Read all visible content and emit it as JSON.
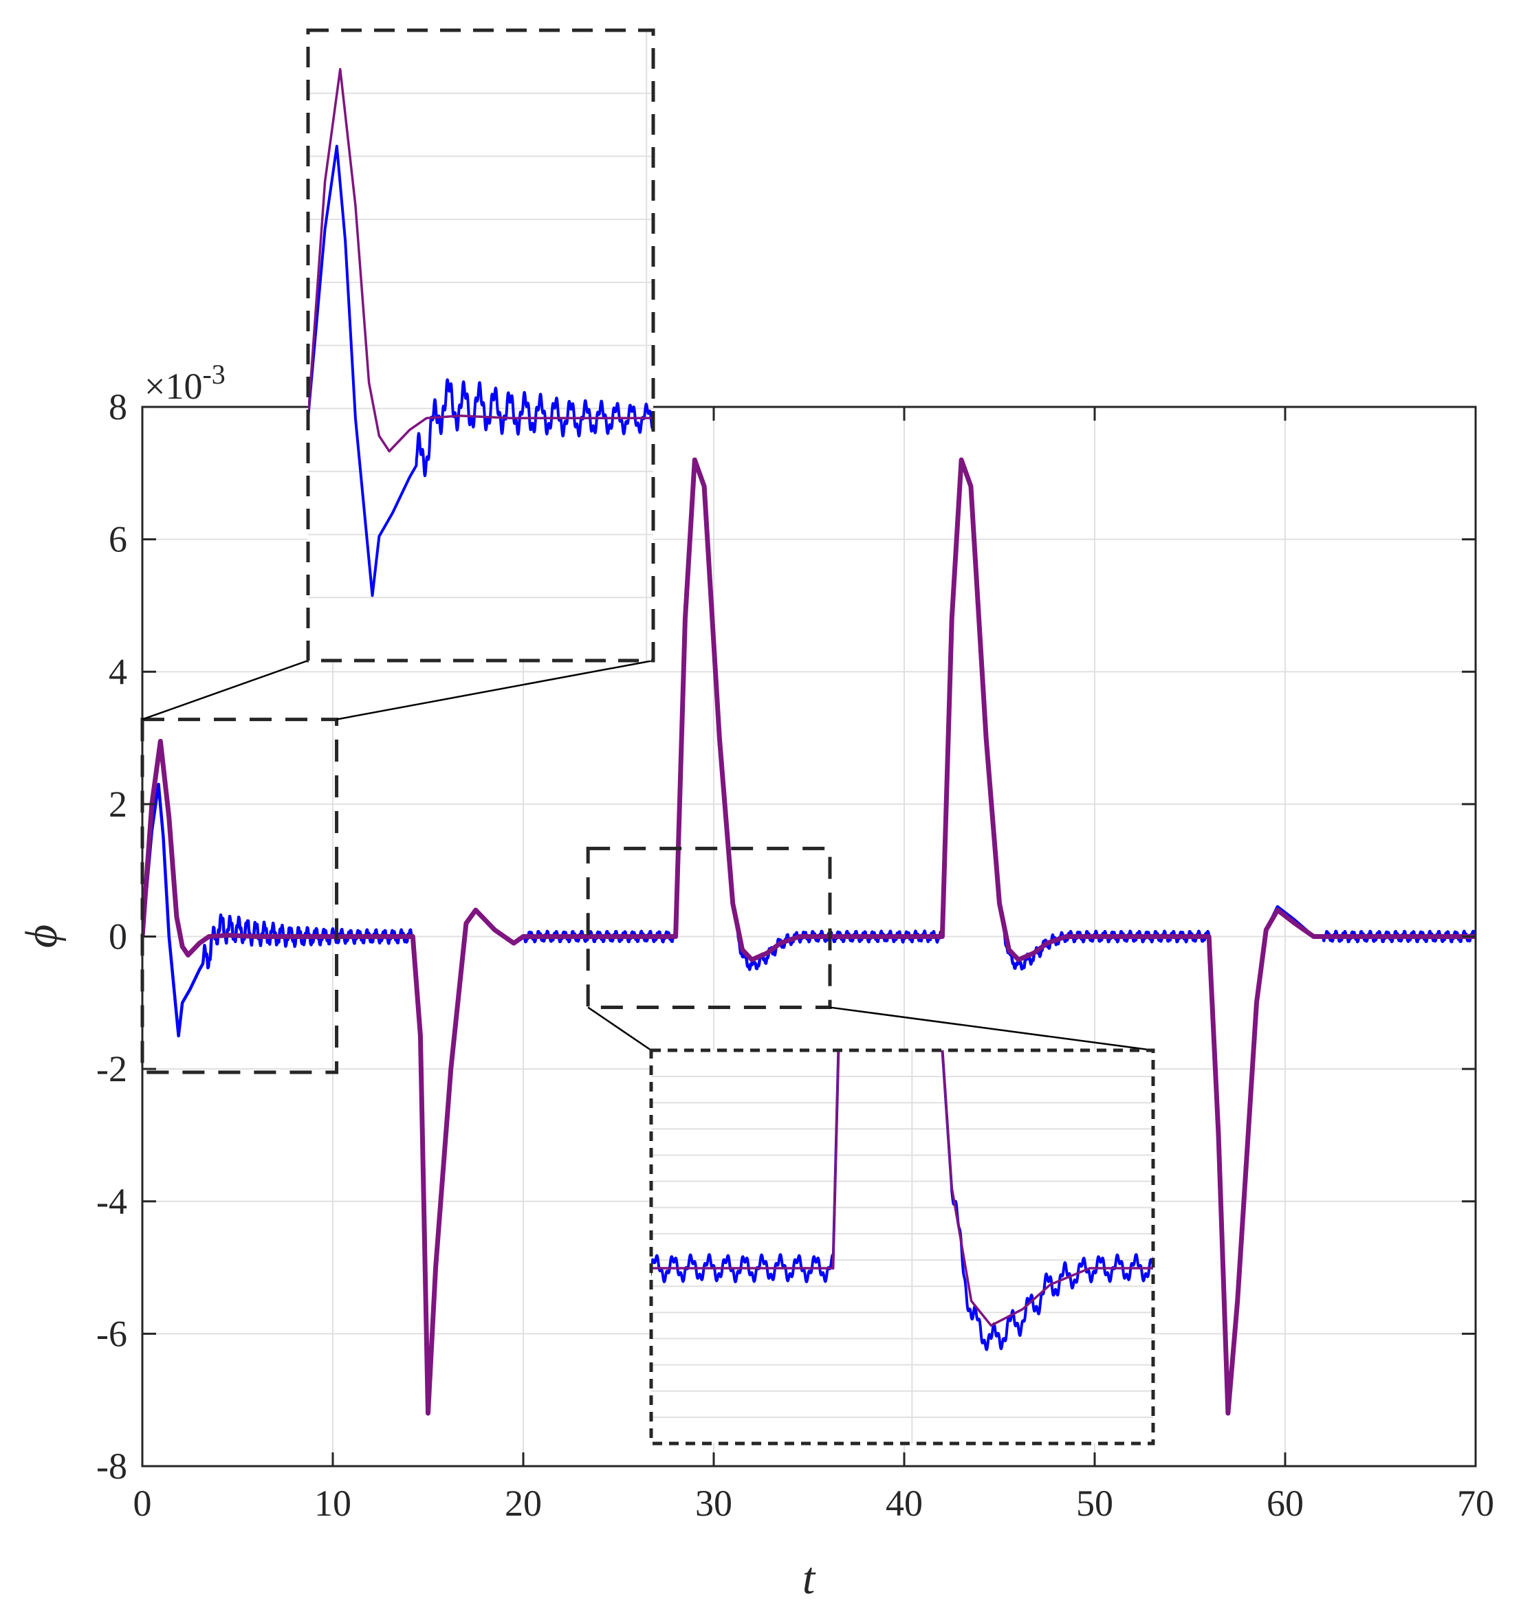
{
  "chart_data": {
    "type": "line",
    "xlabel": "t",
    "ylabel": "ϕ",
    "exponent_label": "×10",
    "exponent_power": "-3",
    "xlim": [
      0,
      70
    ],
    "ylim": [
      -8,
      8
    ],
    "x_ticks": [
      0,
      10,
      20,
      30,
      40,
      50,
      60,
      70
    ],
    "y_ticks": [
      -8,
      -6,
      -4,
      -2,
      0,
      2,
      4,
      6,
      8
    ],
    "x_tick_labels": [
      "0",
      "10",
      "20",
      "30",
      "40",
      "50",
      "60",
      "70"
    ],
    "y_tick_labels": [
      "-8",
      "-6",
      "-4",
      "-2",
      "0",
      "2",
      "4",
      "6",
      "8"
    ],
    "grid": true,
    "y_scale_factor": 0.001,
    "colors": {
      "series_blue": "#0000ff",
      "series_purple": "#7e1580",
      "grid": "#e0e0e0",
      "axes": "#262626",
      "zoom_box": "#262626"
    },
    "series": [
      {
        "color": "#0000ff",
        "ripple": true,
        "points": [
          [
            0,
            0
          ],
          [
            0.5,
            1.6
          ],
          [
            0.85,
            2.3
          ],
          [
            1.1,
            1.5
          ],
          [
            1.4,
            0.0
          ],
          [
            1.7,
            -0.9
          ],
          [
            1.9,
            -1.5
          ],
          [
            2.1,
            -1.0
          ],
          [
            2.5,
            -0.8
          ],
          [
            3.0,
            -0.5
          ],
          [
            3.5,
            -0.25
          ],
          [
            4.0,
            0.15
          ],
          [
            4.5,
            0.1
          ],
          [
            5,
            0.1
          ],
          [
            6,
            0.05
          ],
          [
            8,
            0.0
          ],
          [
            10,
            0.0
          ],
          [
            13,
            0.0
          ],
          [
            14.2,
            0.0
          ],
          [
            14.6,
            -1.5
          ],
          [
            15.0,
            -7.2
          ],
          [
            15.4,
            -5.0
          ],
          [
            16.2,
            -2.0
          ],
          [
            17.0,
            0.2
          ],
          [
            17.5,
            0.4
          ],
          [
            18.5,
            0.1
          ],
          [
            19.5,
            -0.1
          ],
          [
            20,
            0.0
          ],
          [
            28,
            0.0
          ],
          [
            28.5,
            4.8
          ],
          [
            29,
            7.2
          ],
          [
            29.5,
            6.8
          ],
          [
            30.3,
            3.0
          ],
          [
            31,
            0.5
          ],
          [
            31.5,
            -0.3
          ],
          [
            32.0,
            -0.45
          ],
          [
            32.8,
            -0.3
          ],
          [
            33.5,
            -0.1
          ],
          [
            34.5,
            0.0
          ],
          [
            35,
            0.0
          ],
          [
            42,
            0.0
          ],
          [
            42.5,
            4.8
          ],
          [
            43,
            7.2
          ],
          [
            43.5,
            6.8
          ],
          [
            44.3,
            3.0
          ],
          [
            45,
            0.5
          ],
          [
            45.5,
            -0.3
          ],
          [
            46,
            -0.45
          ],
          [
            46.8,
            -0.3
          ],
          [
            47.5,
            -0.1
          ],
          [
            48.5,
            0.0
          ],
          [
            56,
            0.0
          ],
          [
            56.5,
            -3.0
          ],
          [
            57,
            -7.2
          ],
          [
            57.5,
            -5.5
          ],
          [
            58.5,
            -1.0
          ],
          [
            59.0,
            0.1
          ],
          [
            59.6,
            0.45
          ],
          [
            60.5,
            0.25
          ],
          [
            61.5,
            0.0
          ],
          [
            62,
            0.0
          ],
          [
            70,
            0.0
          ]
        ]
      },
      {
        "color": "#7e1580",
        "points": [
          [
            0,
            0
          ],
          [
            0.5,
            2.0
          ],
          [
            0.95,
            2.95
          ],
          [
            1.4,
            1.8
          ],
          [
            1.8,
            0.3
          ],
          [
            2.1,
            -0.15
          ],
          [
            2.4,
            -0.28
          ],
          [
            3.0,
            -0.1
          ],
          [
            3.5,
            0.0
          ],
          [
            4.5,
            0.02
          ],
          [
            6,
            0.0
          ],
          [
            14.2,
            0.0
          ],
          [
            14.6,
            -1.5
          ],
          [
            15.0,
            -7.2
          ],
          [
            15.4,
            -5.0
          ],
          [
            16.2,
            -2.0
          ],
          [
            17.0,
            0.2
          ],
          [
            17.5,
            0.4
          ],
          [
            18.5,
            0.1
          ],
          [
            19.5,
            -0.1
          ],
          [
            20,
            0.0
          ],
          [
            28,
            0.0
          ],
          [
            28.5,
            4.8
          ],
          [
            29,
            7.2
          ],
          [
            29.5,
            6.8
          ],
          [
            30.3,
            3.0
          ],
          [
            31,
            0.5
          ],
          [
            31.5,
            -0.2
          ],
          [
            32.0,
            -0.35
          ],
          [
            32.8,
            -0.25
          ],
          [
            33.5,
            -0.1
          ],
          [
            34.5,
            0.0
          ],
          [
            42,
            0.0
          ],
          [
            42.5,
            4.8
          ],
          [
            43,
            7.2
          ],
          [
            43.5,
            6.8
          ],
          [
            44.3,
            3.0
          ],
          [
            45,
            0.5
          ],
          [
            45.5,
            -0.2
          ],
          [
            46,
            -0.35
          ],
          [
            46.8,
            -0.25
          ],
          [
            47.5,
            -0.1
          ],
          [
            48.5,
            0.0
          ],
          [
            56,
            0.0
          ],
          [
            56.5,
            -3.0
          ],
          [
            57,
            -7.2
          ],
          [
            57.5,
            -5.5
          ],
          [
            58.5,
            -1.0
          ],
          [
            59.0,
            0.1
          ],
          [
            59.6,
            0.4
          ],
          [
            60.5,
            0.2
          ],
          [
            61.5,
            0.0
          ],
          [
            70,
            0.0
          ]
        ]
      }
    ],
    "zoom_regions": [
      {
        "x_range": [
          0,
          10.2
        ],
        "y_range": [
          -2.05,
          3.28
        ]
      },
      {
        "x_range": [
          23.4,
          36.1
        ],
        "y_range": [
          -1.07,
          1.33
        ]
      }
    ]
  }
}
